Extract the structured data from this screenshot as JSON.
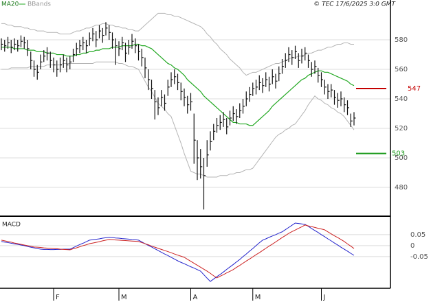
{
  "chart_data": [
    {
      "type": "ohlc",
      "note": "© TEC 17/6/2025 3:0 GMT",
      "high": [
        581,
        580,
        582,
        580,
        581,
        580,
        583,
        582,
        580,
        572,
        566,
        563,
        570,
        573,
        575,
        572,
        568,
        566,
        568,
        570,
        568,
        569,
        574,
        578,
        580,
        582,
        580,
        585,
        588,
        586,
        590,
        588,
        592,
        590,
        585,
        581,
        579,
        582,
        578,
        580,
        584,
        581,
        577,
        574,
        568,
        560,
        553,
        546,
        541,
        546,
        543,
        553,
        558,
        560,
        557,
        551,
        547,
        542,
        544,
        530,
        512,
        506,
        500,
        512,
        518,
        523,
        527,
        529,
        531,
        527,
        532,
        535,
        533,
        537,
        540,
        545,
        548,
        551,
        553,
        556,
        554,
        558,
        555,
        560,
        557,
        562,
        567,
        571,
        575,
        573,
        576,
        571,
        574,
        575,
        570,
        565,
        566,
        561,
        558,
        553,
        550,
        550,
        546,
        544,
        545,
        541,
        539,
        530,
        531
      ],
      "low": [
        573,
        572,
        574,
        571,
        573,
        572,
        575,
        574,
        569,
        560,
        555,
        553,
        560,
        565,
        566,
        561,
        558,
        555,
        558,
        561,
        558,
        560,
        565,
        569,
        571,
        573,
        571,
        576,
        579,
        575,
        581,
        578,
        583,
        580,
        574,
        563,
        569,
        573,
        565,
        570,
        574,
        571,
        566,
        562,
        554,
        546,
        540,
        526,
        529,
        535,
        532,
        542,
        548,
        550,
        546,
        539,
        535,
        530,
        532,
        496,
        485,
        486,
        465,
        494,
        505,
        512,
        517,
        519,
        521,
        516,
        522,
        525,
        523,
        527,
        530,
        535,
        538,
        542,
        543,
        546,
        544,
        548,
        545,
        550,
        547,
        552,
        557,
        561,
        565,
        563,
        567,
        561,
        564,
        566,
        561,
        555,
        557,
        551,
        548,
        543,
        540,
        541,
        536,
        534,
        535,
        531,
        529,
        521,
        522
      ],
      "close": [
        577,
        576,
        578,
        575,
        577,
        576,
        579,
        578,
        574,
        566,
        560,
        558,
        565,
        569,
        571,
        566,
        563,
        560,
        563,
        566,
        563,
        565,
        570,
        574,
        576,
        578,
        576,
        581,
        584,
        580,
        586,
        583,
        588,
        585,
        580,
        576,
        574,
        578,
        571,
        575,
        579,
        576,
        572,
        568,
        561,
        553,
        547,
        538,
        534,
        541,
        537,
        548,
        553,
        555,
        551,
        545,
        541,
        536,
        538,
        512,
        500,
        494,
        488,
        502,
        511,
        518,
        522,
        524,
        526,
        521,
        527,
        530,
        528,
        532,
        535,
        540,
        543,
        547,
        548,
        551,
        549,
        553,
        550,
        555,
        552,
        557,
        562,
        566,
        570,
        568,
        572,
        566,
        569,
        571,
        566,
        560,
        562,
        556,
        553,
        548,
        545,
        546,
        541,
        539,
        540,
        536,
        534,
        525,
        527
      ],
      "bar_color": "#111111",
      "ma": {
        "name": "MA20",
        "color": "#22a822",
        "values": [
          575,
          575,
          575,
          575,
          574,
          574,
          574,
          574,
          573,
          573,
          573,
          572,
          572,
          572,
          571,
          571,
          571,
          570,
          570,
          570,
          569,
          569,
          569,
          570,
          570,
          571,
          571,
          572,
          572,
          573,
          573,
          574,
          574,
          574,
          575,
          575,
          575,
          576,
          576,
          576,
          576,
          577,
          577,
          576,
          576,
          575,
          574,
          572,
          570,
          568,
          566,
          564,
          563,
          561,
          560,
          558,
          556,
          553,
          551,
          549,
          547,
          545,
          542,
          540,
          538,
          536,
          534,
          532,
          530,
          528,
          526,
          524,
          524,
          523,
          523,
          523,
          522,
          522,
          524,
          526,
          528,
          530,
          532,
          535,
          537,
          539,
          541,
          543,
          545,
          547,
          549,
          551,
          553,
          554,
          556,
          557,
          558,
          559,
          559,
          558,
          558,
          557,
          556,
          555,
          554,
          553,
          552,
          550,
          549
        ]
      },
      "bands": {
        "name": "BBands",
        "color": "#b4b4b4",
        "upper": [
          591,
          591,
          590,
          590,
          589,
          589,
          589,
          588,
          588,
          587,
          587,
          586,
          586,
          586,
          585,
          585,
          585,
          585,
          584,
          584,
          584,
          584,
          585,
          586,
          586,
          587,
          588,
          588,
          589,
          590,
          590,
          591,
          591,
          590,
          590,
          589,
          589,
          588,
          588,
          587,
          587,
          586,
          586,
          588,
          590,
          592,
          594,
          596,
          598,
          598,
          598,
          597,
          597,
          596,
          596,
          595,
          594,
          593,
          592,
          591,
          590,
          589,
          587,
          584,
          582,
          579,
          577,
          574,
          572,
          570,
          567,
          565,
          563,
          561,
          558,
          556,
          557,
          558,
          558,
          559,
          560,
          561,
          562,
          563,
          564,
          564,
          565,
          566,
          567,
          568,
          568,
          569,
          569,
          570,
          571,
          571,
          572,
          573,
          573,
          574,
          575,
          575,
          576,
          577,
          577,
          578,
          578,
          577,
          577
        ],
        "lower": [
          560,
          560,
          560,
          561,
          561,
          561,
          561,
          561,
          561,
          562,
          562,
          562,
          562,
          562,
          563,
          563,
          563,
          563,
          563,
          564,
          564,
          564,
          564,
          564,
          564,
          564,
          564,
          564,
          564,
          565,
          565,
          565,
          565,
          565,
          565,
          565,
          564,
          564,
          563,
          562,
          562,
          561,
          560,
          556,
          552,
          548,
          545,
          541,
          537,
          535,
          533,
          530,
          528,
          522,
          516,
          510,
          503,
          497,
          491,
          490,
          489,
          489,
          488,
          487,
          487,
          487,
          487,
          488,
          488,
          488,
          489,
          489,
          490,
          490,
          491,
          492,
          492,
          493,
          496,
          499,
          502,
          505,
          508,
          511,
          514,
          516,
          517,
          519,
          520,
          522,
          523,
          526,
          529,
          532,
          536,
          539,
          542,
          540,
          539,
          537,
          536,
          534,
          533,
          531,
          530,
          528,
          525,
          522,
          519
        ]
      },
      "annotations": [
        {
          "value": 547,
          "color": "#c40000"
        },
        {
          "value": 503,
          "color": "#1a9a1a"
        }
      ],
      "ylim": [
        460,
        607
      ],
      "yticks": [
        480,
        500,
        520,
        540,
        560,
        580
      ],
      "grid": true
    },
    {
      "type": "line",
      "title": "MACD",
      "categories": [
        null,
        null,
        null,
        null,
        null,
        null,
        null,
        null,
        null,
        null,
        null,
        null,
        null,
        null,
        null,
        null,
        "F",
        null,
        null,
        null,
        null,
        null,
        null,
        null,
        null,
        null,
        null,
        null,
        null,
        null,
        null,
        null,
        null,
        null,
        null,
        null,
        "M",
        null,
        null,
        null,
        null,
        null,
        null,
        null,
        null,
        null,
        null,
        null,
        null,
        null,
        null,
        null,
        null,
        null,
        null,
        null,
        null,
        null,
        "A",
        null,
        null,
        null,
        null,
        null,
        null,
        null,
        null,
        null,
        null,
        null,
        null,
        null,
        null,
        null,
        null,
        null,
        null,
        "M",
        null,
        null,
        null,
        null,
        null,
        null,
        null,
        null,
        null,
        null,
        null,
        null,
        null,
        null,
        null,
        null,
        null,
        null,
        null,
        null,
        "J",
        null,
        null,
        null,
        null,
        null,
        null,
        null,
        null,
        null,
        null
      ],
      "series": [
        {
          "color": "#2323cc",
          "values": [
            0.019,
            0.016,
            0.014,
            0.011,
            0.008,
            0.006,
            0.003,
            0.0,
            -0.004,
            -0.007,
            -0.01,
            -0.013,
            -0.016,
            -0.017,
            -0.017,
            -0.018,
            -0.018,
            -0.017,
            -0.017,
            -0.016,
            -0.016,
            -0.016,
            -0.009,
            -0.002,
            0.005,
            0.011,
            0.018,
            0.025,
            0.027,
            0.029,
            0.031,
            0.034,
            0.036,
            0.038,
            0.037,
            0.035,
            0.034,
            0.032,
            0.031,
            0.03,
            0.028,
            0.027,
            0.025,
            0.017,
            0.009,
            0.001,
            -0.006,
            -0.014,
            -0.022,
            -0.03,
            -0.038,
            -0.045,
            -0.053,
            -0.061,
            -0.069,
            -0.076,
            -0.082,
            -0.089,
            -0.096,
            -0.102,
            -0.109,
            -0.116,
            -0.132,
            -0.148,
            -0.163,
            -0.152,
            -0.141,
            -0.131,
            -0.12,
            -0.108,
            -0.097,
            -0.086,
            -0.074,
            -0.063,
            -0.05,
            -0.038,
            -0.025,
            -0.013,
            0.0,
            0.013,
            0.025,
            0.031,
            0.038,
            0.044,
            0.05,
            0.057,
            0.063,
            0.073,
            0.083,
            0.093,
            0.103,
            0.101,
            0.099,
            0.097,
            0.088,
            0.078,
            0.069,
            0.06,
            0.05,
            0.041,
            0.031,
            0.022,
            0.012,
            0.003,
            -0.007,
            -0.016,
            -0.025,
            -0.035,
            -0.044
          ]
        },
        {
          "color": "#cc2222",
          "values": [
            0.025,
            0.022,
            0.019,
            0.016,
            0.012,
            0.009,
            0.006,
            0.003,
            0.0,
            -0.003,
            -0.006,
            -0.007,
            -0.008,
            -0.01,
            -0.011,
            -0.012,
            -0.013,
            -0.014,
            -0.016,
            -0.017,
            -0.018,
            -0.019,
            -0.014,
            -0.01,
            -0.005,
            0.0,
            0.004,
            0.009,
            0.012,
            0.015,
            0.018,
            0.022,
            0.025,
            0.028,
            0.027,
            0.026,
            0.025,
            0.024,
            0.023,
            0.022,
            0.021,
            0.02,
            0.019,
            0.014,
            0.009,
            0.004,
            -0.002,
            -0.007,
            -0.012,
            -0.017,
            -0.022,
            -0.027,
            -0.032,
            -0.038,
            -0.043,
            -0.048,
            -0.053,
            -0.062,
            -0.071,
            -0.08,
            -0.089,
            -0.098,
            -0.107,
            -0.116,
            -0.126,
            -0.137,
            -0.147,
            -0.139,
            -0.132,
            -0.124,
            -0.117,
            -0.109,
            -0.099,
            -0.09,
            -0.08,
            -0.07,
            -0.061,
            -0.051,
            -0.041,
            -0.032,
            -0.022,
            -0.012,
            -0.002,
            0.007,
            0.017,
            0.027,
            0.037,
            0.046,
            0.056,
            0.064,
            0.071,
            0.079,
            0.086,
            0.094,
            0.09,
            0.087,
            0.083,
            0.079,
            0.076,
            0.072,
            0.063,
            0.054,
            0.045,
            0.037,
            0.028,
            0.019,
            0.008,
            -0.002,
            -0.013
          ]
        }
      ],
      "ylim": [
        -0.194,
        0.131
      ],
      "yticks": [
        0.05,
        0,
        -0.05
      ],
      "grid": true
    }
  ]
}
